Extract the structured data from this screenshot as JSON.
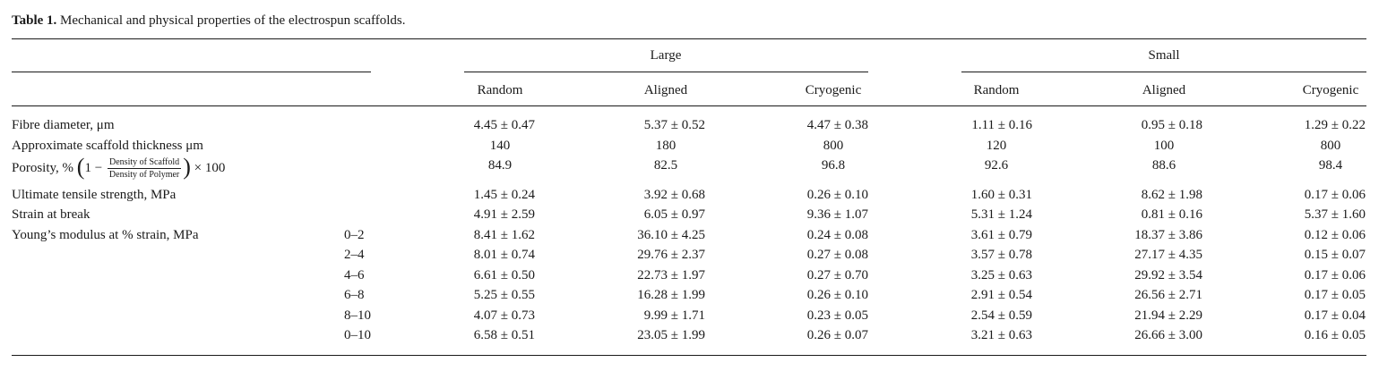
{
  "caption": {
    "label": "Table 1.",
    "text": " Mechanical and physical properties of the electrospun scaffolds."
  },
  "groups": [
    "Large",
    "Small"
  ],
  "columns": [
    "Random",
    "Aligned",
    "Cryogenic",
    "Random",
    "Aligned",
    "Cryogenic"
  ],
  "porosity_formula": {
    "prefix": "Porosity, % ",
    "one_minus": "1 −",
    "numerator": "Density of Scaffold",
    "denominator": "Density of Polymer",
    "suffix": "× 100"
  },
  "rows": [
    {
      "label": "Fibre diameter, μm",
      "sub": "",
      "values": [
        "4.45 ± 0.47",
        "5.37 ± 0.52",
        "4.47 ± 0.38",
        "1.11 ± 0.16",
        "0.95 ± 0.18",
        "1.29 ± 0.22"
      ]
    },
    {
      "label": "Approximate scaffold thickness μm",
      "sub": "",
      "values": [
        "140",
        "180",
        "800",
        "120",
        "100",
        "800"
      ]
    },
    {
      "label": "",
      "sub": "",
      "values": [
        "84.9",
        "82.5",
        "96.8",
        "92.6",
        "88.6",
        "98.4"
      ]
    },
    {
      "label": "Ultimate tensile strength, MPa",
      "sub": "",
      "values": [
        "1.45 ± 0.24",
        "3.92 ± 0.68",
        "0.26 ± 0.10",
        "1.60 ± 0.31",
        "8.62 ± 1.98",
        "0.17 ± 0.06"
      ]
    },
    {
      "label": "Strain at break",
      "sub": "",
      "values": [
        "4.91 ± 2.59",
        "6.05 ± 0.97",
        "9.36 ± 1.07",
        "5.31 ± 1.24",
        "0.81 ± 0.16",
        "5.37 ± 1.60"
      ]
    },
    {
      "label": "Young’s modulus at % strain, MPa",
      "sub": "0–2",
      "values": [
        "8.41 ± 1.62",
        "36.10 ± 4.25",
        "0.24 ± 0.08",
        "3.61 ± 0.79",
        "18.37 ± 3.86",
        "0.12 ± 0.06"
      ]
    },
    {
      "label": "",
      "sub": "2–4",
      "values": [
        "8.01 ± 0.74",
        "29.76 ± 2.37",
        "0.27 ± 0.08",
        "3.57 ± 0.78",
        "27.17 ± 4.35",
        "0.15 ± 0.07"
      ]
    },
    {
      "label": "",
      "sub": "4–6",
      "values": [
        "6.61 ± 0.50",
        "22.73 ± 1.97",
        "0.27 ± 0.70",
        "3.25 ± 0.63",
        "29.92 ± 3.54",
        "0.17 ± 0.06"
      ]
    },
    {
      "label": "",
      "sub": "6–8",
      "values": [
        "5.25 ± 0.55",
        "16.28 ± 1.99",
        "0.26 ± 0.10",
        "2.91 ± 0.54",
        "26.56 ± 2.71",
        "0.17 ± 0.05"
      ]
    },
    {
      "label": "",
      "sub": "8–10",
      "values": [
        "4.07 ± 0.73",
        "9.99 ± 1.71",
        "0.23 ± 0.05",
        "2.54 ± 0.59",
        "21.94 ± 2.29",
        "0.17 ± 0.04"
      ]
    },
    {
      "label": "",
      "sub": "0–10",
      "values": [
        "6.58 ± 0.51",
        "23.05 ± 1.99",
        "0.26 ± 0.07",
        "3.21 ± 0.63",
        "26.66 ± 3.00",
        "0.16 ± 0.05"
      ]
    }
  ]
}
